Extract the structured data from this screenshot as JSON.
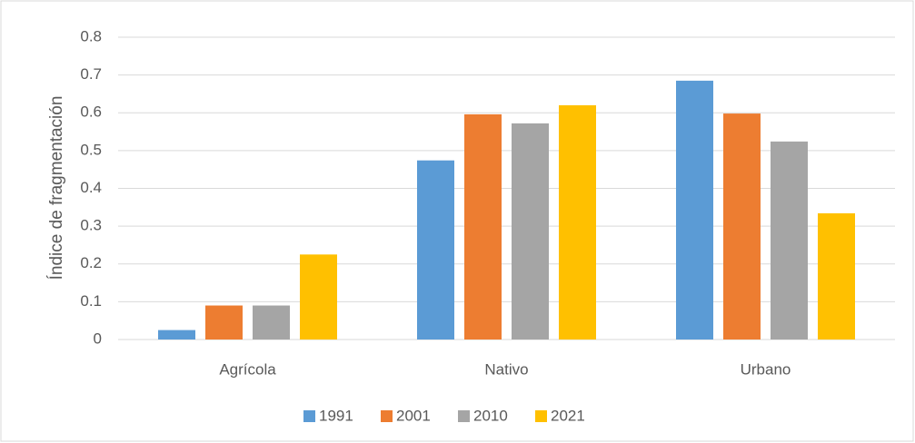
{
  "chart_data": {
    "type": "bar",
    "y_label": "Índice de fragmentación",
    "categories": [
      "Agrícola",
      "Nativo",
      "Urbano"
    ],
    "series": [
      {
        "name": "1991",
        "color": "#5b9bd5",
        "values": [
          0.025,
          0.474,
          0.685
        ]
      },
      {
        "name": "2001",
        "color": "#ed7d31",
        "values": [
          0.09,
          0.596,
          0.598
        ]
      },
      {
        "name": "2010",
        "color": "#a5a5a5",
        "values": [
          0.09,
          0.572,
          0.524
        ]
      },
      {
        "name": "2021",
        "color": "#ffc000",
        "values": [
          0.225,
          0.62,
          0.334
        ]
      }
    ],
    "ylim": [
      0,
      0.8
    ],
    "yticks": [
      0,
      0.1,
      0.2,
      0.3,
      0.4,
      0.5,
      0.6,
      0.7,
      0.8
    ],
    "grid": true,
    "legend": "bottom"
  }
}
